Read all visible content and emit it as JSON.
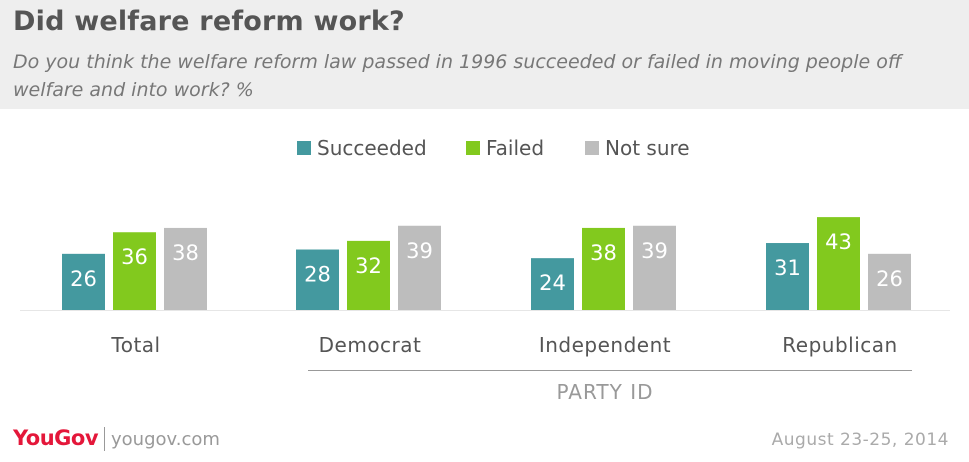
{
  "header": {
    "title": "Did welfare reform work?",
    "subtitle": "Do you think the welfare reform law passed in 1996 succeeded or failed in moving people off welfare and into work? %"
  },
  "footer": {
    "logo": "YouGov",
    "site": "yougov.com",
    "date": "August 23-25, 2014"
  },
  "colors": {
    "Succeeded": "#44999f",
    "Failed": "#82c91e",
    "Not sure": "#bdbdbd",
    "label_text": "#ffffff",
    "axis_text": "#555555",
    "baseline": "#e6e6e6",
    "group_line": "#999999"
  },
  "chart_data": {
    "type": "bar",
    "categories": [
      "Total",
      "Democrat",
      "Independent",
      "Republican"
    ],
    "series": [
      {
        "name": "Succeeded",
        "values": [
          26,
          28,
          24,
          31
        ]
      },
      {
        "name": "Failed",
        "values": [
          36,
          32,
          38,
          43
        ]
      },
      {
        "name": "Not sure",
        "values": [
          38,
          39,
          39,
          26
        ]
      }
    ],
    "group_label": "PARTY ID",
    "group_label_covers": [
      "Democrat",
      "Independent",
      "Republican"
    ],
    "legend_position": "top-center",
    "grid": false,
    "ylim": [
      0,
      43
    ]
  }
}
